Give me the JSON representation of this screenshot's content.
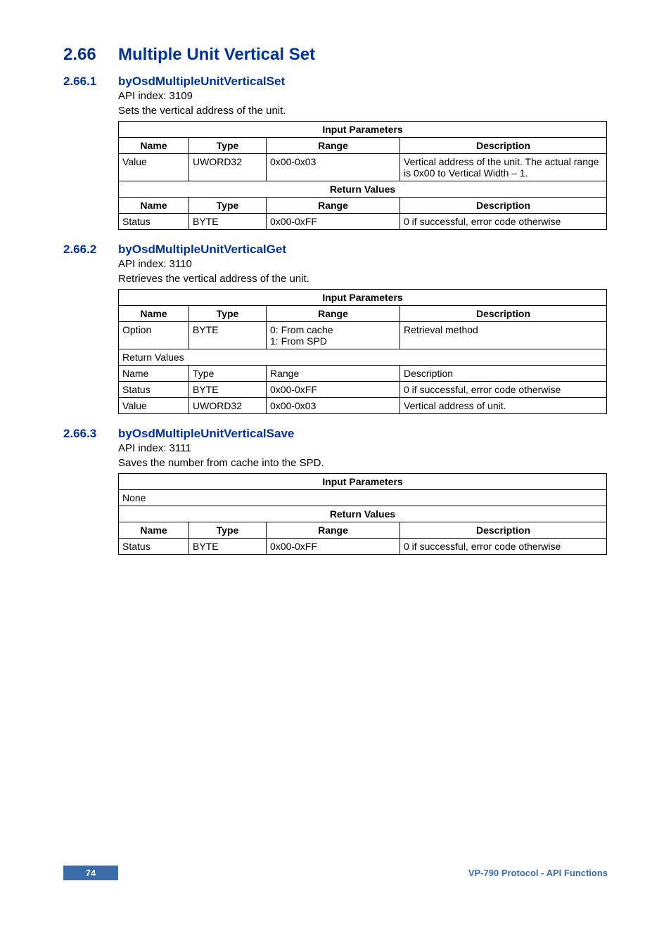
{
  "section": {
    "number": "2.66",
    "title": "Multiple Unit Vertical Set",
    "color": "#003399"
  },
  "subsections": [
    {
      "number": "2.66.1",
      "title": "byOsdMultipleUnitVerticalSet",
      "api_index_label": "API index: 3109",
      "body": "Sets the vertical address of the unit.",
      "table": {
        "input_header": "Input Parameters",
        "cols": [
          "Name",
          "Type",
          "Range",
          "Description"
        ],
        "input_rows": [
          [
            "Value",
            "UWORD32",
            "0x00-0x03",
            "Vertical address of the unit. The actual range is 0x00 to Vertical Width – 1."
          ]
        ],
        "return_header": "Return Values",
        "return_cols": [
          "Name",
          "Type",
          "Range",
          "Description"
        ],
        "return_rows": [
          [
            "Status",
            "BYTE",
            "0x00-0xFF",
            "0 if successful, error code otherwise"
          ]
        ]
      }
    },
    {
      "number": "2.66.2",
      "title": "byOsdMultipleUnitVerticalGet",
      "api_index_label": "API index: 3110",
      "body": "Retrieves the vertical address of the unit.",
      "table": {
        "input_header": "Input Parameters",
        "cols": [
          "Name",
          "Type",
          "Range",
          "Description"
        ],
        "input_rows": [
          [
            "Option",
            "BYTE",
            "0: From cache\n1: From SPD",
            "Retrieval method"
          ]
        ],
        "return_header": "Return Values",
        "return_cols_plain": [
          "Name",
          "Type",
          "Range",
          "Description"
        ],
        "return_rows": [
          [
            "Status",
            "BYTE",
            "0x00-0xFF",
            "0 if successful, error code otherwise"
          ],
          [
            "Value",
            "UWORD32",
            "0x00-0x03",
            "Vertical address of unit."
          ]
        ]
      }
    },
    {
      "number": "2.66.3",
      "title": "byOsdMultipleUnitVerticalSave",
      "api_index_label": "API index: 3111",
      "body": "Saves the number from cache into the SPD.",
      "table": {
        "input_header": "Input Parameters",
        "input_none": "None",
        "return_header": "Return Values",
        "return_cols": [
          "Name",
          "Type",
          "Range",
          "Description"
        ],
        "return_rows": [
          [
            "Status",
            "BYTE",
            "0x00-0xFF",
            "0 if successful, error code otherwise"
          ]
        ]
      }
    }
  ],
  "footer": {
    "page": "74",
    "title": "VP-790 Protocol - API Functions",
    "badge_bg": "#3b6caa",
    "text_color": "#3b6caa"
  }
}
